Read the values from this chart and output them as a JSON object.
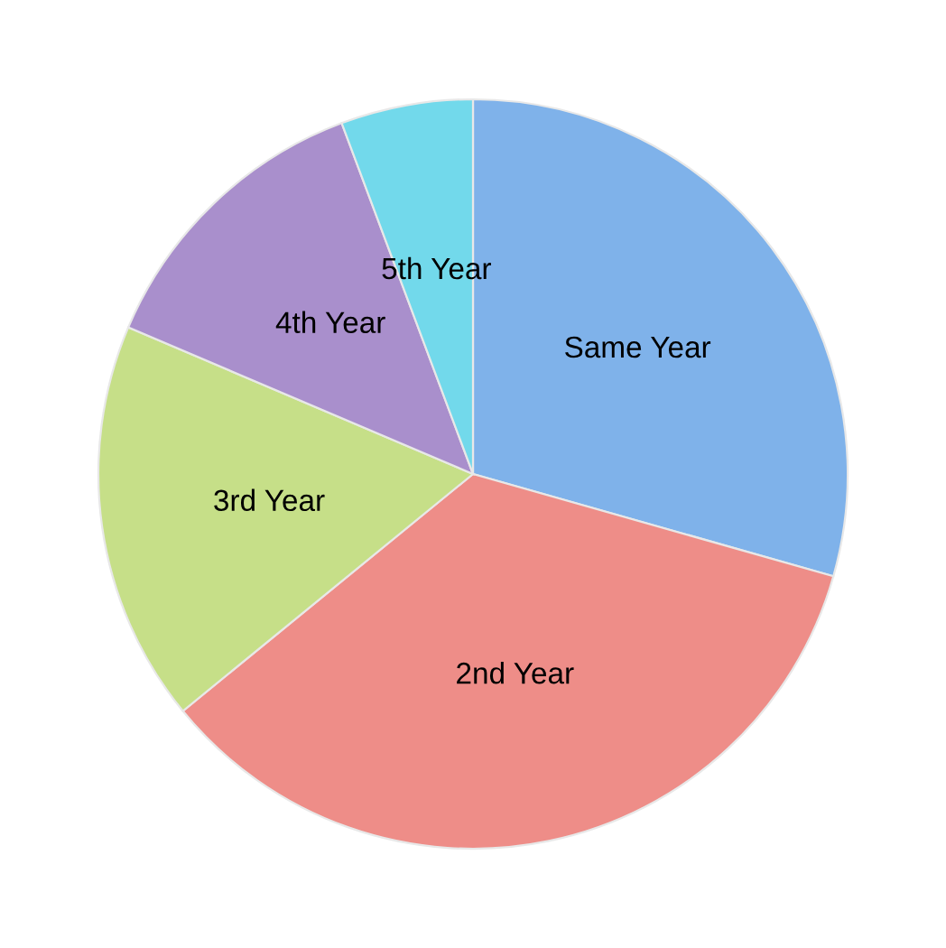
{
  "chart_data": {
    "type": "pie",
    "categories": [
      "Same Year",
      "2nd Year",
      "3rd Year",
      "4th Year",
      "5th Year"
    ],
    "values": [
      29.4,
      34.7,
      17.3,
      12.9,
      5.7
    ],
    "colors": [
      "#7fb2ea",
      "#ee8d88",
      "#c6df88",
      "#a98fcc",
      "#72d9eb"
    ]
  }
}
